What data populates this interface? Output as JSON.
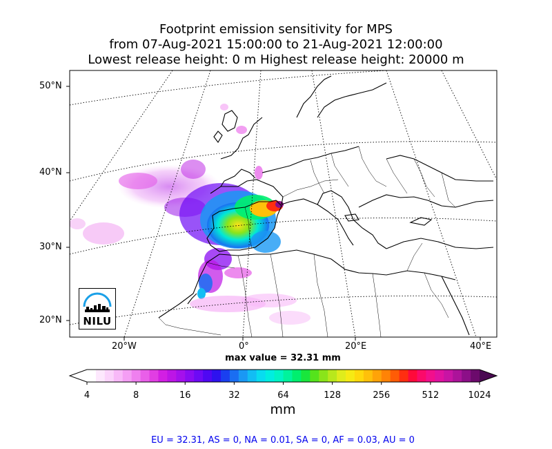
{
  "title": {
    "line1": "Footprint emission sensitivity for MPS",
    "line2": "from 07-Aug-2021 15:00:00 to 21-Aug-2021 12:00:00",
    "line3": "Lowest release height: 0 m      Highest release height: 20000 m"
  },
  "map": {
    "lat_labels": [
      "50°N",
      "40°N",
      "30°N",
      "20°N"
    ],
    "lon_labels": [
      "20°W",
      "0°",
      "20°E",
      "40°E"
    ],
    "logo_text": "NILU",
    "max_value": "max value = 32.31 mm"
  },
  "colorbar": {
    "ticks": [
      "4",
      "8",
      "16",
      "32",
      "64",
      "128",
      "256",
      "512",
      "1024"
    ],
    "unit": "mm",
    "colors": [
      "#ffffff",
      "#fde8fd",
      "#fbd3fb",
      "#f8b9f8",
      "#f49ef4",
      "#ef80ef",
      "#e95fe9",
      "#e13ee3",
      "#d21fe3",
      "#bd15e6",
      "#a510ec",
      "#8a0cf2",
      "#6d0af5",
      "#4f08f3",
      "#2e12ef",
      "#1a3ff0",
      "#1a6ef2",
      "#1a98f4",
      "#12bdf4",
      "#08dcf0",
      "#00eee0",
      "#00f4c4",
      "#00f39c",
      "#00ef6e",
      "#19e63c",
      "#55e31c",
      "#8ae41a",
      "#b8e81c",
      "#dfec1c",
      "#f6ea14",
      "#ffd80c",
      "#ffc00a",
      "#ffa308",
      "#ff8306",
      "#ff5c06",
      "#ff2e10",
      "#ff0a3a",
      "#fb0a6a",
      "#f20f8c",
      "#e012a0",
      "#c814a4",
      "#ac139a",
      "#8c0f88",
      "#6c0a6c"
    ]
  },
  "regions_text": "EU = 32.31,  AS = 0,  NA = 0.01,  SA = 0,  AF = 0.03,  AU = 0"
}
